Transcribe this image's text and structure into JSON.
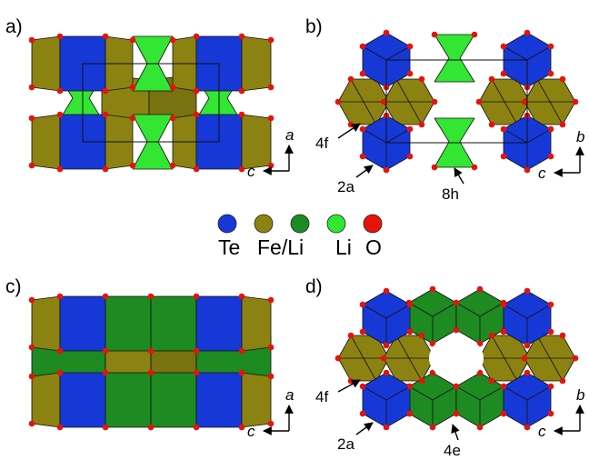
{
  "panels": [
    {
      "label": "a)",
      "axes": {
        "vertical": "a",
        "horizontal": "c"
      }
    },
    {
      "label": "b)",
      "axes": {
        "vertical": "b",
        "horizontal": "c"
      },
      "sites": [
        "4f",
        "2a",
        "8h"
      ]
    },
    {
      "label": "c)",
      "axes": {
        "vertical": "a",
        "horizontal": "c"
      }
    },
    {
      "label": "d)",
      "axes": {
        "vertical": "b",
        "horizontal": "c"
      },
      "sites": [
        "4f",
        "2a",
        "4e"
      ]
    }
  ],
  "legend": [
    {
      "label": "Te",
      "color": "#1638d6"
    },
    {
      "label": "Fe/Li",
      "color": "#8c8212"
    },
    {
      "label": "Li",
      "color": "#1e8a22"
    },
    {
      "label": "O",
      "color": "#e8120c"
    }
  ],
  "legend_extra_color": "#33e633"
}
